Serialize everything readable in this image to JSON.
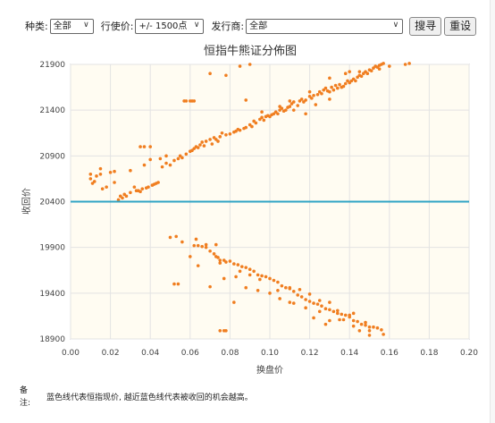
{
  "filters": {
    "type_label": "种类:",
    "type_value": "全部",
    "strike_label": "行使价:",
    "strike_value": "+/- 1500点",
    "issuer_label": "发行商:",
    "issuer_value": "全部",
    "search_label": "搜寻",
    "reset_label": "重设"
  },
  "note": {
    "label": "备注:",
    "text": "蓝色线代表恒指现价, 越近蓝色线代表被收回的机会越高。"
  },
  "colors": {
    "points": "#f07e20",
    "reference_line": "#2fa3c4",
    "plot_bg": "#fffcf2"
  },
  "chart_data": {
    "type": "scatter",
    "title": "恒指牛熊证分佈图",
    "xlabel": "换盘价",
    "ylabel": "收回价",
    "xlim": [
      0,
      0.2
    ],
    "ylim": [
      18900,
      21900
    ],
    "x_ticks": [
      "0.00",
      "0.02",
      "0.04",
      "0.06",
      "0.08",
      "0.10",
      "0.12",
      "0.14",
      "0.16",
      "0.18",
      "0.20"
    ],
    "y_ticks": [
      "18900",
      "19400",
      "19900",
      "20400",
      "20900",
      "21400",
      "21900"
    ],
    "grid": true,
    "reference_line": 20400,
    "series": [
      {
        "points": [
          [
            0.01,
            20700
          ],
          [
            0.01,
            20650
          ],
          [
            0.011,
            20600
          ],
          [
            0.012,
            20620
          ],
          [
            0.013,
            20680
          ],
          [
            0.015,
            20700
          ],
          [
            0.016,
            20540
          ],
          [
            0.018,
            20560
          ],
          [
            0.02,
            20720
          ],
          [
            0.022,
            20730
          ],
          [
            0.024,
            20420
          ],
          [
            0.025,
            20460
          ],
          [
            0.026,
            20440
          ],
          [
            0.027,
            20480
          ],
          [
            0.028,
            20460
          ],
          [
            0.03,
            20500
          ],
          [
            0.03,
            20740
          ],
          [
            0.032,
            20560
          ],
          [
            0.033,
            20520
          ],
          [
            0.034,
            20520
          ],
          [
            0.035,
            20510
          ],
          [
            0.036,
            20540
          ],
          [
            0.037,
            20800
          ],
          [
            0.038,
            20550
          ],
          [
            0.039,
            20560
          ],
          [
            0.04,
            20860
          ],
          [
            0.041,
            20580
          ],
          [
            0.042,
            20590
          ],
          [
            0.043,
            20600
          ],
          [
            0.044,
            20610
          ],
          [
            0.045,
            20870
          ],
          [
            0.046,
            20780
          ],
          [
            0.048,
            20820
          ],
          [
            0.05,
            20800
          ],
          [
            0.052,
            20850
          ],
          [
            0.054,
            20870
          ],
          [
            0.055,
            20900
          ],
          [
            0.056,
            20880
          ],
          [
            0.058,
            20920
          ],
          [
            0.06,
            20950
          ],
          [
            0.061,
            20960
          ],
          [
            0.062,
            20980
          ],
          [
            0.063,
            21000
          ],
          [
            0.064,
            20990
          ],
          [
            0.065,
            21020
          ],
          [
            0.066,
            21050
          ],
          [
            0.067,
            21010
          ],
          [
            0.068,
            21060
          ],
          [
            0.07,
            21080
          ],
          [
            0.071,
            21030
          ],
          [
            0.072,
            21100
          ],
          [
            0.073,
            21080
          ],
          [
            0.074,
            21060
          ],
          [
            0.075,
            21110
          ],
          [
            0.076,
            21150
          ],
          [
            0.078,
            21130
          ],
          [
            0.08,
            21140
          ],
          [
            0.082,
            21160
          ],
          [
            0.083,
            21170
          ],
          [
            0.084,
            21190
          ],
          [
            0.085,
            21180
          ],
          [
            0.087,
            21200
          ],
          [
            0.088,
            21210
          ],
          [
            0.09,
            21240
          ],
          [
            0.091,
            21220
          ],
          [
            0.092,
            21280
          ],
          [
            0.093,
            21260
          ],
          [
            0.095,
            21300
          ],
          [
            0.096,
            21320
          ],
          [
            0.097,
            21290
          ],
          [
            0.098,
            21330
          ],
          [
            0.099,
            21340
          ],
          [
            0.1,
            21330
          ],
          [
            0.101,
            21350
          ],
          [
            0.102,
            21360
          ],
          [
            0.103,
            21380
          ],
          [
            0.104,
            21360
          ],
          [
            0.105,
            21400
          ],
          [
            0.106,
            21420
          ],
          [
            0.107,
            21390
          ],
          [
            0.108,
            21400
          ],
          [
            0.109,
            21430
          ],
          [
            0.11,
            21440
          ],
          [
            0.111,
            21470
          ],
          [
            0.112,
            21490
          ],
          [
            0.114,
            21450
          ],
          [
            0.115,
            21500
          ],
          [
            0.116,
            21520
          ],
          [
            0.117,
            21490
          ],
          [
            0.118,
            21510
          ],
          [
            0.12,
            21550
          ],
          [
            0.121,
            21530
          ],
          [
            0.122,
            21560
          ],
          [
            0.124,
            21570
          ],
          [
            0.125,
            21600
          ],
          [
            0.126,
            21580
          ],
          [
            0.127,
            21620
          ],
          [
            0.128,
            21640
          ],
          [
            0.129,
            21610
          ],
          [
            0.13,
            21600
          ],
          [
            0.131,
            21650
          ],
          [
            0.132,
            21620
          ],
          [
            0.133,
            21670
          ],
          [
            0.134,
            21640
          ],
          [
            0.135,
            21680
          ],
          [
            0.136,
            21650
          ],
          [
            0.137,
            21660
          ],
          [
            0.138,
            21690
          ],
          [
            0.139,
            21720
          ],
          [
            0.14,
            21700
          ],
          [
            0.141,
            21720
          ],
          [
            0.142,
            21740
          ],
          [
            0.143,
            21720
          ],
          [
            0.144,
            21760
          ],
          [
            0.145,
            21780
          ],
          [
            0.146,
            21770
          ],
          [
            0.147,
            21800
          ],
          [
            0.148,
            21820
          ],
          [
            0.149,
            21800
          ],
          [
            0.15,
            21840
          ],
          [
            0.151,
            21830
          ],
          [
            0.152,
            21860
          ],
          [
            0.153,
            21880
          ],
          [
            0.154,
            21870
          ],
          [
            0.155,
            21890
          ],
          [
            0.156,
            21900
          ],
          [
            0.157,
            21910
          ],
          [
            0.015,
            20760
          ],
          [
            0.022,
            20610
          ],
          [
            0.048,
            20900
          ],
          [
            0.062,
            21500
          ],
          [
            0.07,
            21800
          ],
          [
            0.078,
            21780
          ],
          [
            0.085,
            21880
          ],
          [
            0.09,
            21900
          ],
          [
            0.105,
            21440
          ],
          [
            0.11,
            21500
          ],
          [
            0.112,
            21400
          ],
          [
            0.118,
            21360
          ],
          [
            0.123,
            21460
          ],
          [
            0.13,
            21520
          ],
          [
            0.138,
            21800
          ],
          [
            0.145,
            21820
          ],
          [
            0.155,
            21850
          ],
          [
            0.16,
            21880
          ],
          [
            0.168,
            21900
          ],
          [
            0.17,
            21910
          ],
          [
            0.035,
            21000
          ],
          [
            0.037,
            21000
          ],
          [
            0.04,
            21000
          ],
          [
            0.057,
            21500
          ],
          [
            0.058,
            21500
          ],
          [
            0.06,
            21500
          ],
          [
            0.061,
            21500
          ],
          [
            0.088,
            21510
          ],
          [
            0.096,
            21380
          ],
          [
            0.12,
            21600
          ],
          [
            0.13,
            21750
          ],
          [
            0.14,
            21820
          ],
          [
            0.05,
            20010
          ],
          [
            0.053,
            20020
          ],
          [
            0.056,
            19960
          ],
          [
            0.062,
            19920
          ],
          [
            0.064,
            19920
          ],
          [
            0.066,
            19910
          ],
          [
            0.068,
            19900
          ],
          [
            0.07,
            19860
          ],
          [
            0.072,
            19830
          ],
          [
            0.073,
            19800
          ],
          [
            0.074,
            19790
          ],
          [
            0.075,
            19760
          ],
          [
            0.077,
            19760
          ],
          [
            0.078,
            19740
          ],
          [
            0.08,
            19750
          ],
          [
            0.082,
            19720
          ],
          [
            0.084,
            19710
          ],
          [
            0.086,
            19690
          ],
          [
            0.088,
            19680
          ],
          [
            0.09,
            19660
          ],
          [
            0.092,
            19640
          ],
          [
            0.094,
            19600
          ],
          [
            0.096,
            19590
          ],
          [
            0.098,
            19580
          ],
          [
            0.1,
            19560
          ],
          [
            0.102,
            19540
          ],
          [
            0.104,
            19520
          ],
          [
            0.106,
            19480
          ],
          [
            0.108,
            19460
          ],
          [
            0.11,
            19450
          ],
          [
            0.112,
            19420
          ],
          [
            0.114,
            19380
          ],
          [
            0.116,
            19360
          ],
          [
            0.118,
            19330
          ],
          [
            0.12,
            19310
          ],
          [
            0.122,
            19290
          ],
          [
            0.124,
            19280
          ],
          [
            0.126,
            19260
          ],
          [
            0.128,
            19230
          ],
          [
            0.13,
            19220
          ],
          [
            0.132,
            19200
          ],
          [
            0.134,
            19180
          ],
          [
            0.136,
            19170
          ],
          [
            0.138,
            19160
          ],
          [
            0.14,
            19140
          ],
          [
            0.142,
            19100
          ],
          [
            0.144,
            19090
          ],
          [
            0.146,
            19060
          ],
          [
            0.148,
            19050
          ],
          [
            0.15,
            19030
          ],
          [
            0.152,
            19030
          ],
          [
            0.154,
            19020
          ],
          [
            0.156,
            19000
          ],
          [
            0.157,
            18950
          ],
          [
            0.145,
            18990
          ],
          [
            0.15,
            18990
          ],
          [
            0.052,
            19500
          ],
          [
            0.054,
            19500
          ],
          [
            0.063,
            19990
          ],
          [
            0.068,
            19930
          ],
          [
            0.073,
            19930
          ],
          [
            0.075,
            19730
          ],
          [
            0.085,
            19640
          ],
          [
            0.09,
            19600
          ],
          [
            0.095,
            19550
          ],
          [
            0.104,
            19430
          ],
          [
            0.11,
            19460
          ],
          [
            0.115,
            19440
          ],
          [
            0.12,
            19390
          ],
          [
            0.125,
            19320
          ],
          [
            0.13,
            19300
          ],
          [
            0.134,
            19210
          ],
          [
            0.14,
            19160
          ],
          [
            0.142,
            19180
          ],
          [
            0.11,
            19300
          ],
          [
            0.118,
            19240
          ],
          [
            0.122,
            19130
          ],
          [
            0.128,
            19060
          ],
          [
            0.137,
            19110
          ],
          [
            0.148,
            19080
          ],
          [
            0.06,
            19800
          ],
          [
            0.064,
            19700
          ],
          [
            0.07,
            19470
          ],
          [
            0.077,
            19560
          ],
          [
            0.083,
            19580
          ],
          [
            0.088,
            19460
          ],
          [
            0.094,
            19430
          ],
          [
            0.1,
            19400
          ],
          [
            0.105,
            19340
          ],
          [
            0.112,
            19290
          ],
          [
            0.125,
            19200
          ],
          [
            0.13,
            19100
          ],
          [
            0.135,
            19110
          ],
          [
            0.075,
            18990
          ],
          [
            0.077,
            18990
          ],
          [
            0.078,
            18990
          ],
          [
            0.082,
            19300
          ],
          [
            0.142,
            19040
          ],
          [
            0.15,
            18940
          ]
        ]
      }
    ]
  }
}
